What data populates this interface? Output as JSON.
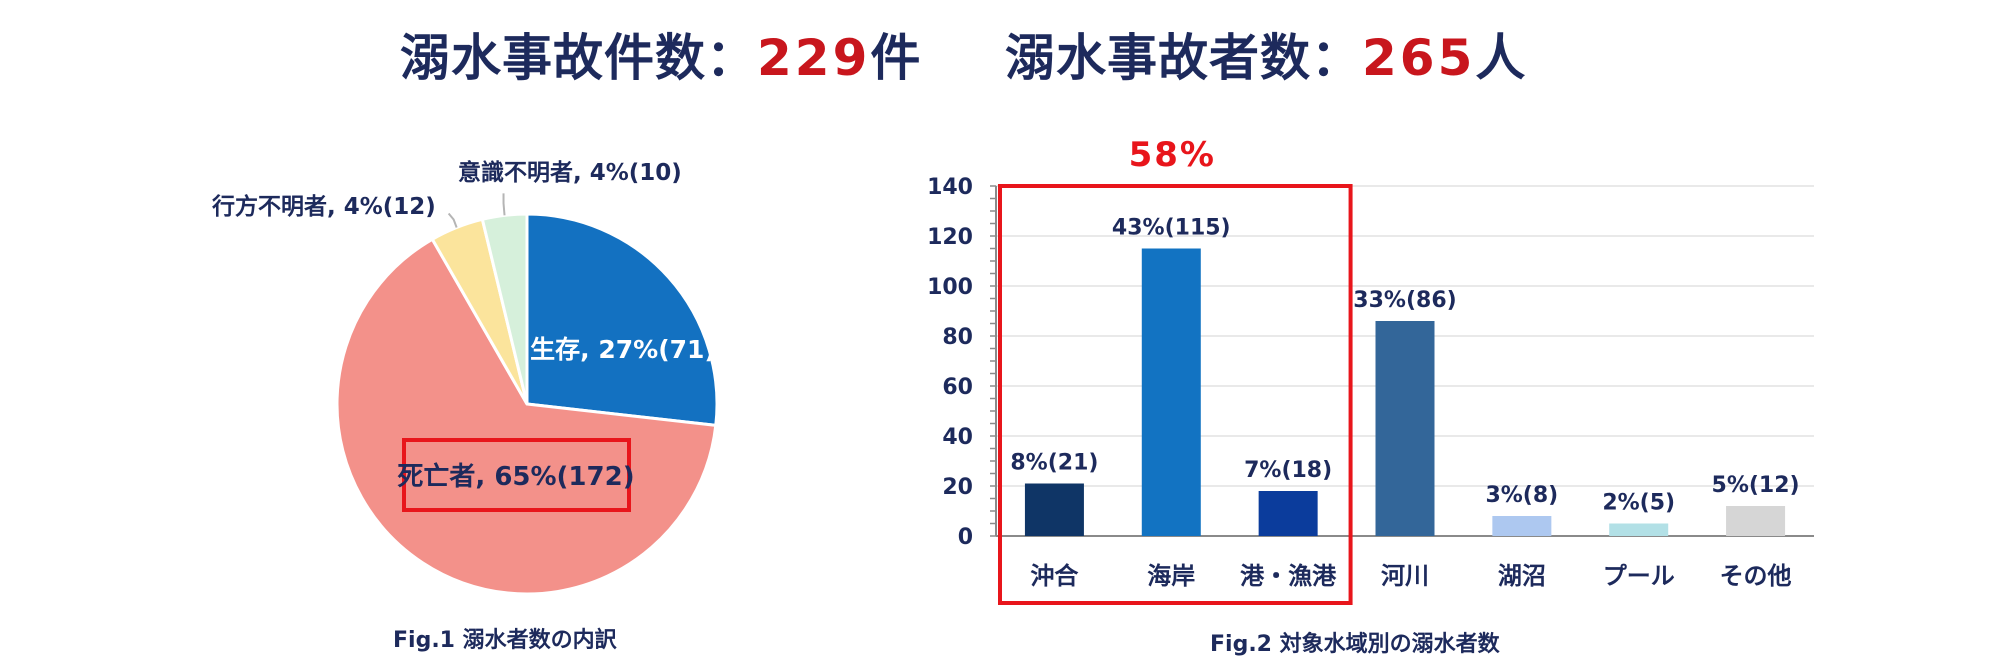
{
  "headline": {
    "accidents_label": "溺水事故件数：",
    "accidents_value": "229",
    "accidents_unit": "件",
    "victims_label": "溺水事故者数：",
    "victims_value": "265",
    "victims_unit": "人"
  },
  "captions": {
    "fig1": "Fig.1 溺水者数の内訳",
    "fig2": "Fig.2 対象水域別の溺水者数"
  },
  "highlight": {
    "label": "58%",
    "color": "#e8151b"
  },
  "chart_data": [
    {
      "type": "pie",
      "title": "Fig.1 溺水者数の内訳",
      "slices": [
        {
          "label": "生存, 27%(71)",
          "value": 71,
          "color": "#1371c1"
        },
        {
          "label": "死亡者, 65%(172)",
          "value": 172,
          "color": "#f3918a"
        },
        {
          "label": "行方不明者, 4%(12)",
          "value": 12,
          "color": "#fbe49c"
        },
        {
          "label": "意識不明者, 4%(10)",
          "value": 10,
          "color": "#d6f0db"
        }
      ]
    },
    {
      "type": "bar",
      "title": "Fig.2 対象水域別の溺水者数",
      "categories": [
        "沖合",
        "海岸",
        "港・漁港",
        "河川",
        "湖沼",
        "プール",
        "その他"
      ],
      "values": [
        21,
        115,
        18,
        86,
        8,
        5,
        12
      ],
      "data_labels": [
        "8%(21)",
        "43%(115)",
        "7%(18)",
        "33%(86)",
        "3%(8)",
        "2%(5)",
        "5%(12)"
      ],
      "colors": [
        "#0f3566",
        "#1273c2",
        "#0b3c9c",
        "#336699",
        "#adc8f0",
        "#b2e0e6",
        "#d6d6d6"
      ],
      "ylim": [
        0,
        140
      ],
      "yticks": [
        0,
        20,
        40,
        60,
        80,
        100,
        120,
        140
      ],
      "grid": true
    }
  ]
}
